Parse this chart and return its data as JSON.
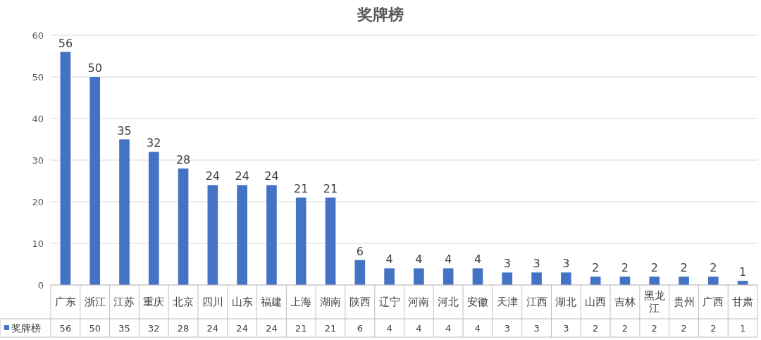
{
  "chart_data": {
    "type": "bar",
    "title": "奖牌榜",
    "categories": [
      "广东",
      "浙江",
      "江苏",
      "重庆",
      "北京",
      "四川",
      "山东",
      "福建",
      "上海",
      "湖南",
      "陕西",
      "辽宁",
      "河南",
      "河北",
      "安徽",
      "天津",
      "江西",
      "湖北",
      "山西",
      "吉林",
      "黑龙江",
      "贵州",
      "广西",
      "甘肃"
    ],
    "series": [
      {
        "name": "奖牌榜",
        "color": "#4472c4",
        "values": [
          56,
          50,
          35,
          32,
          28,
          24,
          24,
          24,
          21,
          21,
          6,
          4,
          4,
          4,
          4,
          3,
          3,
          3,
          2,
          2,
          2,
          2,
          2,
          1
        ],
        "value_labels": [
          "56",
          "50",
          "35",
          "32",
          "28",
          "24",
          "24",
          "24",
          "21",
          "21",
          "6",
          "4",
          "4",
          "4",
          "4",
          "3",
          "3",
          "3",
          "2",
          "2",
          "2",
          "2",
          "2",
          "1"
        ]
      }
    ],
    "ylim": [
      0,
      60
    ],
    "yticks": [
      0,
      10,
      20,
      30,
      40,
      50,
      60
    ],
    "grid": "y",
    "legend": "bottom",
    "data_labels": true
  }
}
